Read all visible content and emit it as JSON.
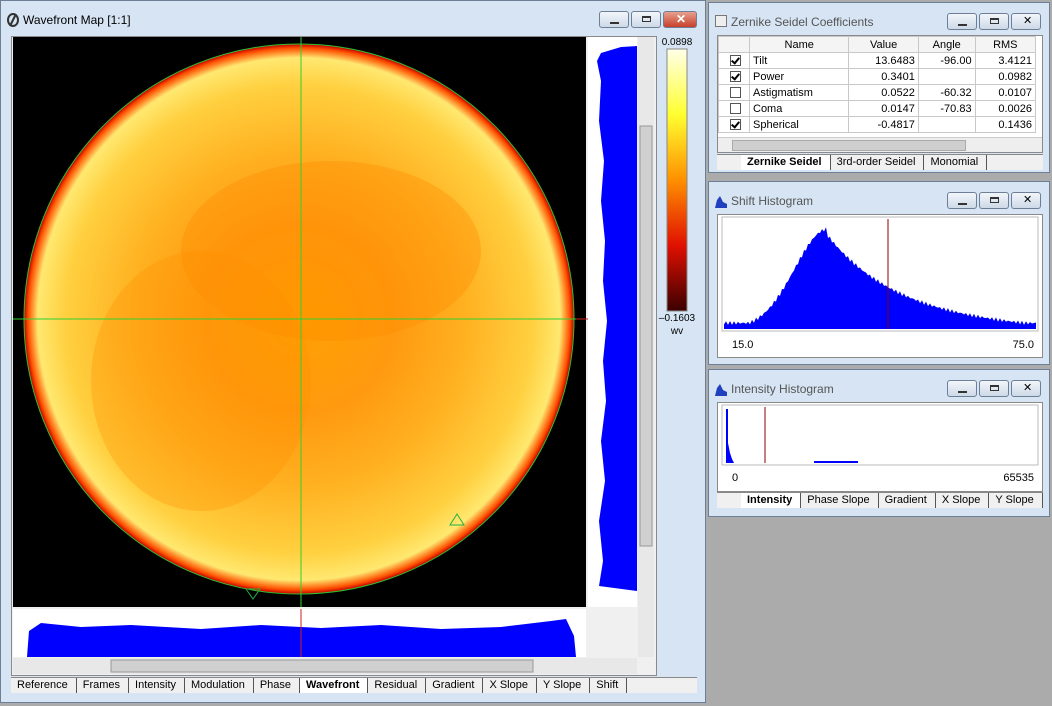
{
  "wavefront_window": {
    "title": "Wavefront Map [1:1]",
    "colorbar": {
      "max_label": "0.0898",
      "min_label": "–0.1603",
      "unit": "wv"
    },
    "tabs": [
      "Reference",
      "Frames",
      "Intensity",
      "Modulation",
      "Phase",
      "Wavefront",
      "Residual",
      "Gradient",
      "X Slope",
      "Y Slope",
      "Shift"
    ],
    "active_tab": 5
  },
  "zernike_window": {
    "title": "Zernike Seidel Coefficients",
    "table": {
      "columns": [
        "Name",
        "Value",
        "Angle",
        "RMS"
      ],
      "rows": [
        {
          "checked": true,
          "name": "Tilt",
          "value": "13.6483",
          "angle": "-96.00",
          "rms": "3.4121"
        },
        {
          "checked": true,
          "name": "Power",
          "value": "0.3401",
          "angle": null,
          "rms": "0.0982"
        },
        {
          "checked": false,
          "name": "Astigmatism",
          "value": "0.0522",
          "angle": "-60.32",
          "rms": "0.0107"
        },
        {
          "checked": false,
          "name": "Coma",
          "value": "0.0147",
          "angle": "-70.83",
          "rms": "0.0026"
        },
        {
          "checked": true,
          "name": "Spherical",
          "value": "-0.4817",
          "angle": null,
          "rms": "0.1436"
        }
      ]
    },
    "tabs": [
      "Zernike Seidel",
      "3rd-order Seidel",
      "Monomial"
    ],
    "active_tab": 0
  },
  "shift_window": {
    "title": "Shift Histogram",
    "axis_min": "15.0",
    "axis_max": "75.0"
  },
  "intensity_window": {
    "title": "Intensity Histogram",
    "axis_min": "0",
    "axis_max": "65535",
    "tabs": [
      "Intensity",
      "Phase Slope",
      "Gradient",
      "X Slope",
      "Y Slope"
    ],
    "active_tab": 0
  }
}
